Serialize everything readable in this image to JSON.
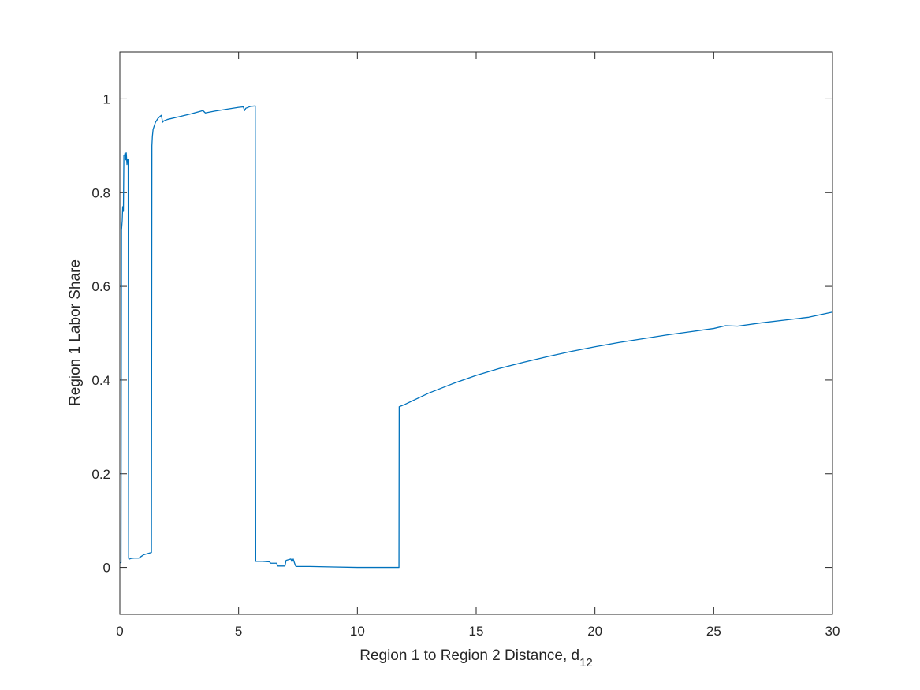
{
  "chart_data": {
    "type": "line",
    "title": "",
    "xlabel": "Region 1 to Region 2 Distance, d",
    "xlabel_subscript": "12",
    "ylabel": "Region 1 Labor Share",
    "xlim": [
      0,
      30
    ],
    "ylim": [
      -0.1,
      1.1
    ],
    "xticks": [
      0,
      5,
      10,
      15,
      20,
      25,
      30
    ],
    "yticks": [
      0,
      0.2,
      0.4,
      0.6,
      0.8,
      1
    ],
    "xtick_labels": [
      "0",
      "5",
      "10",
      "15",
      "20",
      "25",
      "30"
    ],
    "ytick_labels": [
      "0",
      "0.2",
      "0.4",
      "0.6",
      "0.8",
      "1"
    ],
    "grid": false,
    "series": [
      {
        "color": "#0072bd",
        "x": [
          0.0,
          0.05,
          0.07,
          0.1,
          0.12,
          0.15,
          0.17,
          0.2,
          0.22,
          0.25,
          0.27,
          0.3,
          0.32,
          0.35,
          0.37,
          0.38,
          0.4,
          0.42,
          0.45,
          0.6,
          0.8,
          1.0,
          1.2,
          1.33,
          1.35,
          1.37,
          1.4,
          1.5,
          1.6,
          1.7,
          1.75,
          1.8,
          1.85,
          2.0,
          2.5,
          3.0,
          3.5,
          3.6,
          3.7,
          4.0,
          4.5,
          5.0,
          5.2,
          5.25,
          5.3,
          5.5,
          5.7,
          5.72,
          5.75,
          6.0,
          6.3,
          6.35,
          6.6,
          6.65,
          6.9,
          6.95,
          7.0,
          7.2,
          7.25,
          7.3,
          7.35,
          7.4,
          7.45,
          8.0,
          9.0,
          10.0,
          11.0,
          11.75,
          11.76,
          12.0,
          13.0,
          14.0,
          15.0,
          16.0,
          17.0,
          18.0,
          19.0,
          20.0,
          21.0,
          22.0,
          23.0,
          24.0,
          25.0,
          25.5,
          26.0,
          27.0,
          28.0,
          29.0,
          30.0
        ],
        "y": [
          0.01,
          0.01,
          0.72,
          0.74,
          0.77,
          0.76,
          0.88,
          0.88,
          0.885,
          0.87,
          0.885,
          0.86,
          0.87,
          0.87,
          0.02,
          0.018,
          0.018,
          0.018,
          0.019,
          0.02,
          0.02,
          0.027,
          0.03,
          0.032,
          0.9,
          0.92,
          0.935,
          0.95,
          0.958,
          0.963,
          0.965,
          0.95,
          0.953,
          0.956,
          0.962,
          0.968,
          0.975,
          0.97,
          0.971,
          0.974,
          0.978,
          0.982,
          0.983,
          0.975,
          0.98,
          0.984,
          0.985,
          0.013,
          0.013,
          0.013,
          0.012,
          0.009,
          0.009,
          0.003,
          0.003,
          0.003,
          0.015,
          0.018,
          0.012,
          0.018,
          0.01,
          0.003,
          0.002,
          0.002,
          0.001,
          0.0,
          0.0,
          0.0,
          0.343,
          0.348,
          0.372,
          0.392,
          0.41,
          0.425,
          0.438,
          0.45,
          0.461,
          0.471,
          0.48,
          0.488,
          0.496,
          0.503,
          0.51,
          0.516,
          0.515,
          0.522,
          0.528,
          0.534,
          0.545
        ]
      }
    ]
  }
}
